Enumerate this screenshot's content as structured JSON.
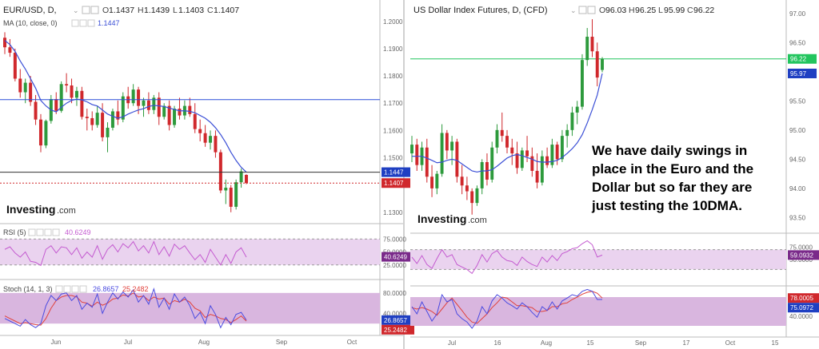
{
  "colors": {
    "up": "#2d9a3c",
    "down": "#d0282c",
    "ma": "#3b4fd6",
    "rsi": "#c45ad0",
    "stoch_k": "#4b4be0",
    "stoch_d": "#e0413c",
    "band": "#ead3ef",
    "band_stoch": "#d9b6df",
    "price_line": "#2c4fd8",
    "current_eur": "#d0282c",
    "current_dxy": "#22c55e",
    "axis": "#666666",
    "grid_border": "#cfcfcf"
  },
  "left_chart": {
    "title": "EUR/USD, D,",
    "title_icon": "chevron-down-icon",
    "ohlc": {
      "o_label": "O",
      "o": "1.1437",
      "h_label": "H",
      "h": "1.1439",
      "l_label": "L",
      "l": "1.1403",
      "c_label": "C",
      "c": "1.1407"
    },
    "ma_label": "MA (10, close, 0)",
    "ma_value": "1.1447",
    "logo": "Investing",
    "logo_suffix": ".com",
    "price_axis": [
      "1.2000",
      "1.1900",
      "1.1800",
      "1.1700",
      "1.1600",
      "1.1500",
      "1.1300"
    ],
    "badges": [
      {
        "label": "1.1447",
        "color": "#1f3fc2"
      },
      {
        "label": "1.1407",
        "color": "#d0282c"
      }
    ],
    "rsi_label": "RSI (5)",
    "rsi_value": "40.6249",
    "rsi_axis": [
      "75.0000",
      "50.0000",
      "25.0000"
    ],
    "rsi_badge": "40.6249",
    "stoch_label": "Stoch (14, 1, 3)",
    "stoch_k_value": "26.8657",
    "stoch_d_value": "25.2482",
    "stoch_axis": [
      "80.0000",
      "40.0000"
    ],
    "stoch_badges": [
      "26.8657",
      "25.2482"
    ],
    "x_labels": [
      "Jun",
      "Jul",
      "Aug",
      "Sep",
      "Oct"
    ]
  },
  "right_chart": {
    "title": "US Dollar Index Futures, D, (CFD)",
    "title_icon": "chevron-down-icon",
    "ohlc": {
      "o_label": "O",
      "o": "96.03",
      "h_label": "H",
      "h": "96.25",
      "l_label": "L",
      "l": "95.99",
      "c_label": "C",
      "c": "96.22"
    },
    "logo": "Investing",
    "logo_suffix": ".com",
    "annotation": [
      "We have daily swings in",
      "place in the Euro and the",
      "Dollar but so far they are",
      "just testing the 10DMA."
    ],
    "price_axis": [
      "97.00",
      "96.50",
      "95.50",
      "95.00",
      "94.50",
      "94.00",
      "93.50"
    ],
    "badges": [
      {
        "label": "96.22",
        "color": "#22c55e"
      },
      {
        "label": "95.97",
        "color": "#1f3fc2"
      }
    ],
    "rsi_axis": [
      "75.0000",
      "50.0000"
    ],
    "rsi_badge": "59.0932",
    "stoch_axis": [
      "40.0000"
    ],
    "stoch_badges": [
      "78.0005",
      "75.0972"
    ],
    "x_labels": [
      "Jul",
      "16",
      "Aug",
      "15",
      "Sep",
      "17",
      "Oct",
      "15"
    ]
  },
  "chart_data": [
    {
      "type": "candlestick",
      "title": "EUR/USD, D,",
      "ylim": [
        1.127,
        1.2055
      ],
      "ohlc": [
        [
          1.194,
          1.196,
          1.188,
          1.1905
        ],
        [
          1.1905,
          1.1935,
          1.187,
          1.1885
        ],
        [
          1.1885,
          1.19,
          1.178,
          1.179
        ],
        [
          1.179,
          1.1825,
          1.172,
          1.174
        ],
        [
          1.174,
          1.179,
          1.17,
          1.1775
        ],
        [
          1.1775,
          1.18,
          1.169,
          1.1705
        ],
        [
          1.1705,
          1.173,
          1.162,
          1.164
        ],
        [
          1.164,
          1.166,
          1.152,
          1.1545
        ],
        [
          1.1545,
          1.164,
          1.1535,
          1.1635
        ],
        [
          1.1635,
          1.173,
          1.1625,
          1.1715
        ],
        [
          1.1715,
          1.174,
          1.166,
          1.1672
        ],
        [
          1.1672,
          1.178,
          1.1665,
          1.177
        ],
        [
          1.177,
          1.181,
          1.174,
          1.1765
        ],
        [
          1.1765,
          1.179,
          1.17,
          1.172
        ],
        [
          1.172,
          1.176,
          1.169,
          1.1745
        ],
        [
          1.1745,
          1.176,
          1.164,
          1.165
        ],
        [
          1.165,
          1.168,
          1.16,
          1.1645
        ],
        [
          1.1645,
          1.167,
          1.16,
          1.162
        ],
        [
          1.162,
          1.169,
          1.161,
          1.1665
        ],
        [
          1.1665,
          1.17,
          1.156,
          1.1575
        ],
        [
          1.1575,
          1.163,
          1.152,
          1.161
        ],
        [
          1.161,
          1.168,
          1.16,
          1.167
        ],
        [
          1.167,
          1.171,
          1.162,
          1.164
        ],
        [
          1.164,
          1.174,
          1.163,
          1.1725
        ],
        [
          1.1725,
          1.176,
          1.168,
          1.17
        ],
        [
          1.17,
          1.177,
          1.169,
          1.175
        ],
        [
          1.175,
          1.176,
          1.166,
          1.169
        ],
        [
          1.169,
          1.172,
          1.165,
          1.171
        ],
        [
          1.171,
          1.174,
          1.166,
          1.1675
        ],
        [
          1.1675,
          1.173,
          1.166,
          1.172
        ],
        [
          1.172,
          1.174,
          1.162,
          1.165
        ],
        [
          1.165,
          1.17,
          1.164,
          1.169
        ],
        [
          1.169,
          1.171,
          1.16,
          1.162
        ],
        [
          1.162,
          1.169,
          1.161,
          1.168
        ],
        [
          1.168,
          1.172,
          1.164,
          1.1655
        ],
        [
          1.1655,
          1.171,
          1.164,
          1.169
        ],
        [
          1.169,
          1.172,
          1.165,
          1.166
        ],
        [
          1.166,
          1.17,
          1.159,
          1.1605
        ],
        [
          1.1605,
          1.164,
          1.156,
          1.159
        ],
        [
          1.159,
          1.162,
          1.154,
          1.1555
        ],
        [
          1.1555,
          1.16,
          1.153,
          1.158
        ],
        [
          1.158,
          1.16,
          1.15,
          1.152
        ],
        [
          1.152,
          1.153,
          1.137,
          1.138
        ],
        [
          1.138,
          1.142,
          1.133,
          1.139
        ],
        [
          1.139,
          1.14,
          1.13,
          1.132
        ],
        [
          1.132,
          1.142,
          1.131,
          1.141
        ],
        [
          1.141,
          1.146,
          1.139,
          1.145
        ],
        [
          1.1437,
          1.1439,
          1.1403,
          1.1407
        ]
      ],
      "ma10": [
        1.193,
        1.1915,
        1.189,
        1.1855,
        1.1825,
        1.179,
        1.1755,
        1.171,
        1.169,
        1.1675,
        1.1668,
        1.1685,
        1.17,
        1.171,
        1.1715,
        1.1712,
        1.1705,
        1.1695,
        1.169,
        1.1675,
        1.166,
        1.1652,
        1.1645,
        1.165,
        1.166,
        1.1668,
        1.1675,
        1.168,
        1.1688,
        1.1692,
        1.169,
        1.1688,
        1.1682,
        1.1677,
        1.1672,
        1.1672,
        1.167,
        1.1665,
        1.1655,
        1.1645,
        1.163,
        1.161,
        1.1585,
        1.1555,
        1.152,
        1.149,
        1.1465,
        1.1447
      ],
      "rsi": [
        55,
        60,
        48,
        40,
        50,
        32,
        30,
        24,
        55,
        62,
        48,
        60,
        58,
        45,
        58,
        38,
        50,
        40,
        62,
        36,
        55,
        64,
        50,
        66,
        58,
        70,
        52,
        62,
        48,
        70,
        45,
        60,
        42,
        65,
        55,
        62,
        48,
        35,
        45,
        30,
        55,
        40,
        25,
        45,
        28,
        50,
        58,
        40
      ],
      "stoch_k": [
        30,
        25,
        20,
        15,
        28,
        18,
        12,
        20,
        55,
        75,
        65,
        78,
        80,
        65,
        75,
        48,
        60,
        52,
        78,
        40,
        62,
        80,
        68,
        82,
        72,
        86,
        62,
        75,
        58,
        88,
        52,
        70,
        48,
        78,
        62,
        72,
        55,
        30,
        42,
        20,
        55,
        38,
        12,
        32,
        18,
        38,
        42,
        27
      ],
      "stoch_d": [
        35,
        30,
        25,
        20,
        22,
        20,
        18,
        17,
        30,
        50,
        65,
        72,
        75,
        75,
        72,
        62,
        60,
        54,
        62,
        56,
        60,
        68,
        70,
        76,
        74,
        80,
        72,
        74,
        65,
        72,
        68,
        70,
        58,
        65,
        62,
        68,
        62,
        50,
        45,
        32,
        38,
        35,
        30,
        28,
        22,
        28,
        35,
        25
      ],
      "rsi_levels": [
        75,
        50,
        25
      ],
      "stoch_band": [
        80,
        20
      ]
    },
    {
      "type": "candlestick",
      "title": "US Dollar Index Futures, D, (CFD)",
      "ylim": [
        93.3,
        97.12
      ],
      "ohlc": [
        [
          94.6,
          94.9,
          94.45,
          94.75
        ],
        [
          94.75,
          94.85,
          94.3,
          94.4
        ],
        [
          94.4,
          94.8,
          94.3,
          94.7
        ],
        [
          94.7,
          94.85,
          94.1,
          94.2
        ],
        [
          94.2,
          94.4,
          93.85,
          94.0
        ],
        [
          94.0,
          94.3,
          93.9,
          94.25
        ],
        [
          94.25,
          95.1,
          94.2,
          94.95
        ],
        [
          94.95,
          95.0,
          94.5,
          94.65
        ],
        [
          94.65,
          94.9,
          94.4,
          94.8
        ],
        [
          94.8,
          94.85,
          94.1,
          94.2
        ],
        [
          94.2,
          94.4,
          93.9,
          94.05
        ],
        [
          94.05,
          94.2,
          93.8,
          93.95
        ],
        [
          93.95,
          94.0,
          93.55,
          93.75
        ],
        [
          93.75,
          94.05,
          93.7,
          94.0
        ],
        [
          94.0,
          94.5,
          93.9,
          94.45
        ],
        [
          94.45,
          94.6,
          94.05,
          94.15
        ],
        [
          94.15,
          94.8,
          94.1,
          94.7
        ],
        [
          94.7,
          95.1,
          94.6,
          95.0
        ],
        [
          95.0,
          95.3,
          94.8,
          94.9
        ],
        [
          94.9,
          95.0,
          94.6,
          94.7
        ],
        [
          94.7,
          94.85,
          94.4,
          94.6
        ],
        [
          94.6,
          94.8,
          94.25,
          94.35
        ],
        [
          94.35,
          94.7,
          94.3,
          94.65
        ],
        [
          94.65,
          94.9,
          94.45,
          94.55
        ],
        [
          94.55,
          94.7,
          94.2,
          94.3
        ],
        [
          94.3,
          94.6,
          94.0,
          94.1
        ],
        [
          94.1,
          94.65,
          94.05,
          94.55
        ],
        [
          94.55,
          94.7,
          94.35,
          94.4
        ],
        [
          94.4,
          94.85,
          94.35,
          94.75
        ],
        [
          94.75,
          94.8,
          94.4,
          94.5
        ],
        [
          94.5,
          95.0,
          94.45,
          94.9
        ],
        [
          94.9,
          95.1,
          94.7,
          95.0
        ],
        [
          95.0,
          95.4,
          94.9,
          95.3
        ],
        [
          95.3,
          95.5,
          95.1,
          95.4
        ],
        [
          95.4,
          96.3,
          95.35,
          96.2
        ],
        [
          96.2,
          96.75,
          96.1,
          96.6
        ],
        [
          96.6,
          96.9,
          96.25,
          96.35
        ],
        [
          96.35,
          96.5,
          95.75,
          95.9
        ],
        [
          96.03,
          96.25,
          95.99,
          96.22
        ]
      ],
      "ma10": [
        94.55,
        94.55,
        94.55,
        94.52,
        94.48,
        94.44,
        94.45,
        94.48,
        94.5,
        94.48,
        94.42,
        94.36,
        94.3,
        94.28,
        94.3,
        94.3,
        94.32,
        94.38,
        94.45,
        94.52,
        94.56,
        94.58,
        94.56,
        94.53,
        94.5,
        94.46,
        94.45,
        94.45,
        94.46,
        94.48,
        94.53,
        94.6,
        94.68,
        94.78,
        94.92,
        95.12,
        95.35,
        95.6,
        95.97
      ],
      "rsi": [
        55,
        42,
        58,
        40,
        32,
        52,
        70,
        55,
        60,
        40,
        35,
        30,
        22,
        38,
        60,
        45,
        62,
        68,
        55,
        48,
        46,
        38,
        55,
        46,
        40,
        36,
        55,
        45,
        58,
        48,
        62,
        66,
        72,
        74,
        82,
        88,
        80,
        55,
        59.09
      ],
      "stoch_k": [
        60,
        45,
        70,
        50,
        30,
        45,
        85,
        70,
        75,
        45,
        35,
        28,
        15,
        30,
        60,
        45,
        72,
        85,
        78,
        68,
        62,
        55,
        68,
        60,
        48,
        38,
        60,
        52,
        70,
        55,
        72,
        78,
        85,
        82,
        92,
        96,
        92,
        75,
        75.1
      ],
      "stoch_d": [
        58,
        55,
        58,
        55,
        50,
        42,
        55,
        68,
        78,
        65,
        52,
        38,
        28,
        25,
        35,
        45,
        58,
        68,
        80,
        78,
        70,
        62,
        62,
        60,
        58,
        50,
        50,
        52,
        60,
        60,
        66,
        68,
        75,
        80,
        86,
        90,
        92,
        88,
        78.0
      ],
      "rsi_levels": [
        70,
        30
      ],
      "stoch_band": [
        80,
        20
      ]
    }
  ]
}
